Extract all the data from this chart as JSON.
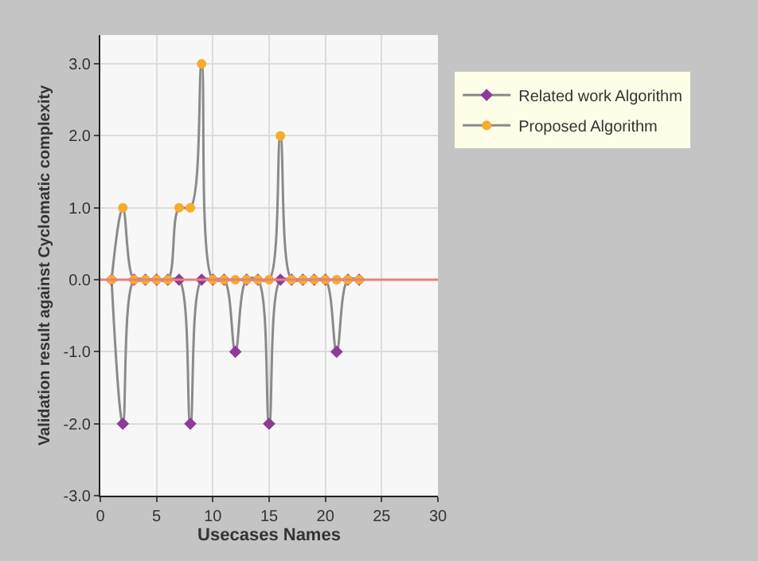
{
  "chart_data": {
    "type": "line",
    "xlabel": "Usecases Names",
    "ylabel": "Validation result against Cyclomatic complexity",
    "x": [
      1,
      2,
      3,
      4,
      5,
      6,
      7,
      8,
      9,
      10,
      11,
      12,
      13,
      14,
      15,
      16,
      17,
      18,
      19,
      20,
      21,
      22,
      23
    ],
    "series": [
      {
        "name": "Related work Algorithm",
        "color": "#8e3a98",
        "marker": "diamond",
        "values": [
          0,
          -2,
          0,
          0,
          0,
          0,
          0,
          -2,
          0,
          0,
          0,
          -1,
          0,
          0,
          -2,
          0,
          0,
          0,
          0,
          0,
          -1,
          0,
          0
        ]
      },
      {
        "name": "Proposed Algorithm",
        "color": "#f5ad2a",
        "marker": "circle",
        "values": [
          0,
          1,
          0,
          0,
          0,
          0,
          1,
          1,
          3,
          0,
          0,
          0,
          0,
          0,
          0,
          2,
          0,
          0,
          0,
          0,
          0,
          0,
          0
        ]
      }
    ],
    "xlim": [
      0,
      30
    ],
    "xticks": [
      0,
      5,
      10,
      15,
      20,
      25,
      30
    ],
    "ylim": [
      -3,
      3.4
    ],
    "yticks": [
      {
        "value": -3,
        "label": "-3.0"
      },
      {
        "value": -2,
        "label": "-2.0"
      },
      {
        "value": -1,
        "label": "-1.0"
      },
      {
        "value": 0,
        "label": "0.0"
      },
      {
        "value": 1,
        "label": "1.0"
      },
      {
        "value": 2,
        "label": "2.0"
      },
      {
        "value": 3,
        "label": "3.0"
      }
    ],
    "ref_lines": [
      {
        "axis": "y",
        "value": 0,
        "color": "#e88080"
      }
    ],
    "grid": true,
    "legend": "top right",
    "line_style": "solid"
  }
}
